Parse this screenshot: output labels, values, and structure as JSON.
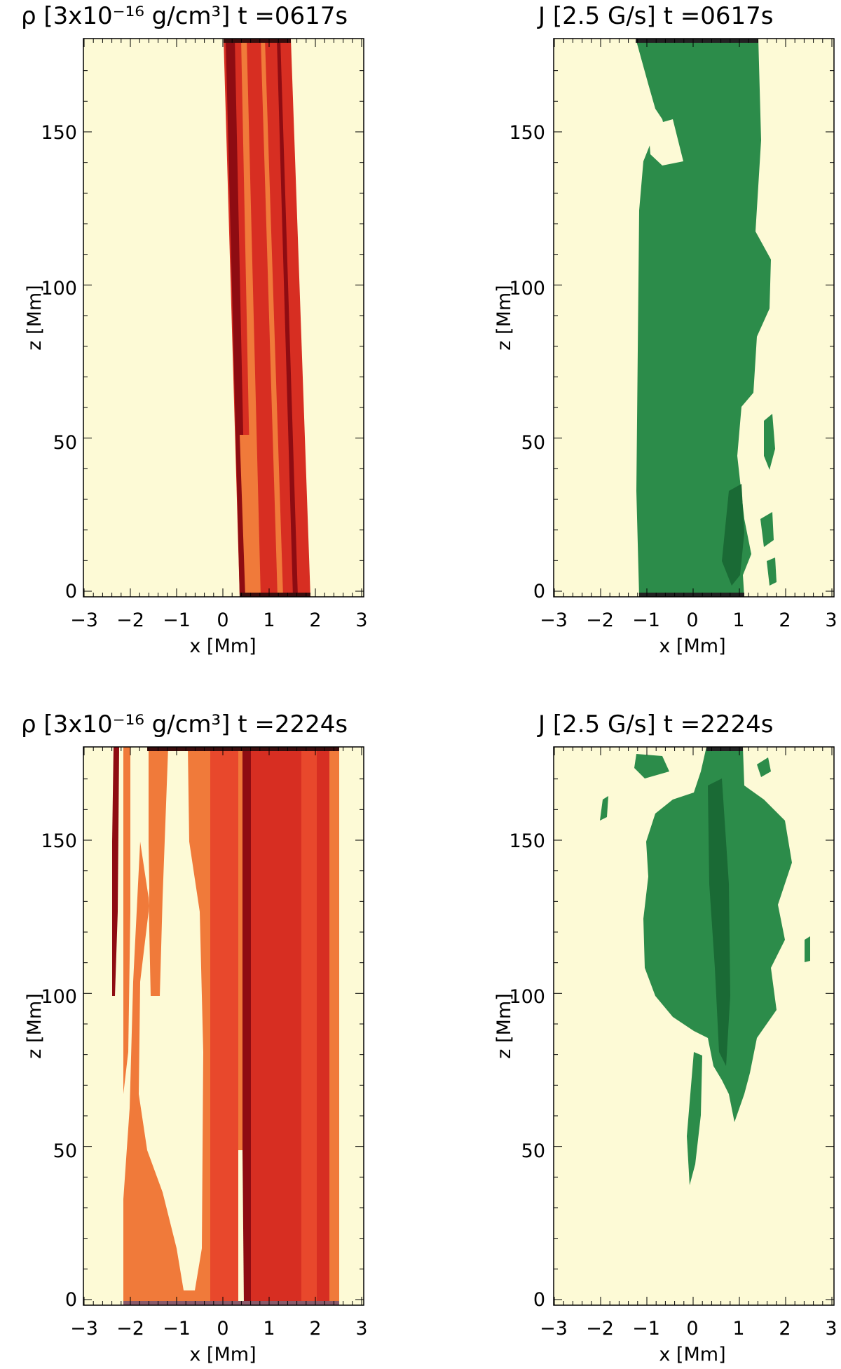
{
  "colors": {
    "background": "#fdfad6",
    "rho_dark": "#8e0c12",
    "rho_mid": "#d72e22",
    "rho_light": "#f07a3a",
    "j_green": "#2c8c4a",
    "j_green_dark": "#1a6a35"
  },
  "chart_data": [
    {
      "type": "heatmap",
      "panel": "top-left",
      "title": "ρ [3x10⁻¹⁶ g/cm³]   t =0617s",
      "quantity": "rho",
      "unit_scale": "3x10^-16 g/cm^3",
      "time_s": 617,
      "xlabel": "x [Mm]",
      "ylabel": "z [Mm]",
      "xlim": [
        -3,
        3
      ],
      "ylim": [
        -2,
        178
      ],
      "xticks": [
        "−3",
        "−2",
        "−1",
        "0",
        "1",
        "2",
        "3"
      ],
      "yticks": [
        "0",
        "50",
        "100",
        "150"
      ],
      "structure": [
        {
          "level": "high",
          "x_left_bottom": 0.35,
          "x_right_bottom": 1.9,
          "x_left_top": 0.05,
          "x_right_top": 1.45,
          "z_bottom": 0,
          "z_top": 178
        }
      ]
    },
    {
      "type": "heatmap",
      "panel": "top-right",
      "title": "J [2.5 G/s]   t =0617s",
      "quantity": "J",
      "unit_scale": "2.5 G/s",
      "time_s": 617,
      "xlabel": "x [Mm]",
      "ylabel": "z [Mm]",
      "xlim": [
        -3,
        3
      ],
      "ylim": [
        -2,
        178
      ],
      "xticks": [
        "−3",
        "−2",
        "−1",
        "0",
        "1",
        "2",
        "3"
      ],
      "yticks": [
        "0",
        "50",
        "100",
        "150"
      ],
      "structure": [
        {
          "level": "isosurface",
          "x_left": -1.15,
          "x_right": 1.2,
          "z_bottom": 0,
          "z_top": 178
        }
      ]
    },
    {
      "type": "heatmap",
      "panel": "bottom-left",
      "title": "ρ [3x10⁻¹⁶ g/cm³]   t =2224s",
      "quantity": "rho",
      "unit_scale": "3x10^-16 g/cm^3",
      "time_s": 2224,
      "xlabel": "x [Mm]",
      "ylabel": "z [Mm]",
      "xlim": [
        -3,
        3
      ],
      "ylim": [
        -2,
        178
      ],
      "xticks": [
        "−3",
        "−2",
        "−1",
        "0",
        "1",
        "2",
        "3"
      ],
      "yticks": [
        "0",
        "50",
        "100",
        "150"
      ],
      "structure": [
        {
          "level": "high",
          "x_left": 0.45,
          "x_right": 2.5,
          "z_bottom": 0,
          "z_top": 178
        },
        {
          "level": "medium",
          "x_left": -2.2,
          "x_right": 0.45,
          "z_bottom": 0,
          "z_top": 178
        }
      ]
    },
    {
      "type": "heatmap",
      "panel": "bottom-right",
      "title": "J [2.5 G/s]   t =2224s",
      "quantity": "J",
      "unit_scale": "2.5 G/s",
      "time_s": 2224,
      "xlabel": "x [Mm]",
      "ylabel": "z [Mm]",
      "xlim": [
        -3,
        3
      ],
      "ylim": [
        -2,
        178
      ],
      "xticks": [
        "−3",
        "−2",
        "−1",
        "0",
        "1",
        "2",
        "3"
      ],
      "yticks": [
        "0",
        "50",
        "100",
        "150"
      ],
      "structure": [
        {
          "level": "isosurface",
          "x_left": -1.2,
          "x_right": 2.0,
          "z_bottom": 35,
          "z_top": 178
        }
      ]
    }
  ]
}
